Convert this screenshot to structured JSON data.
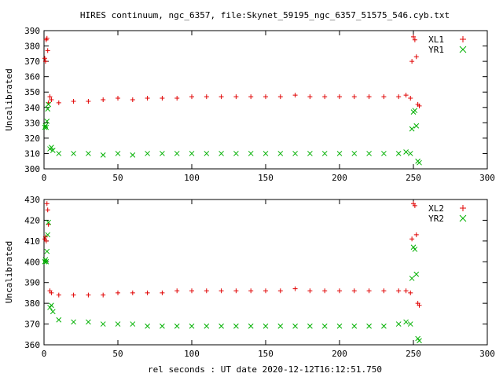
{
  "figure": {
    "title": "HIRES continuum, ngc_6357, file:Skynet_59195_ngc_6357_51575_546.cyb.txt",
    "xlabel": "rel seconds : UT date 2020-12-12T16:12:51.750"
  },
  "colors": {
    "red": "#e00000",
    "green": "#00b000",
    "axis": "#000000"
  },
  "chart_data": [
    {
      "type": "scatter",
      "id": "top",
      "title": "HIRES continuum, ngc_6357, file:Skynet_59195_ngc_6357_51575_546.cyb.txt",
      "xlabel": "",
      "ylabel": "Uncalibrated",
      "xlim": [
        0,
        300
      ],
      "ylim": [
        300,
        390
      ],
      "xticks": [
        0,
        50,
        100,
        150,
        200,
        250,
        300
      ],
      "yticks": [
        300,
        310,
        320,
        330,
        340,
        350,
        360,
        370,
        380,
        390
      ],
      "grid": false,
      "legend_position": "top-right",
      "series": [
        {
          "name": "XL1",
          "marker": "plus",
          "color": "#e00000",
          "x": [
            0.5,
            1,
            1.5,
            2,
            2.5,
            3,
            4,
            5,
            10,
            20,
            30,
            40,
            50,
            60,
            70,
            80,
            90,
            100,
            110,
            120,
            130,
            140,
            150,
            160,
            170,
            180,
            190,
            200,
            210,
            220,
            230,
            240,
            245,
            248,
            249,
            250,
            251,
            252,
            253,
            254
          ],
          "y": [
            372,
            370,
            384,
            385,
            377,
            343,
            347,
            345,
            343,
            344,
            344,
            345,
            346,
            345,
            346,
            346,
            346,
            347,
            347,
            347,
            347,
            347,
            347,
            347,
            348,
            347,
            347,
            347,
            347,
            347,
            347,
            347,
            348,
            346,
            370,
            386,
            384,
            373,
            342,
            341
          ]
        },
        {
          "name": "YR1",
          "marker": "cross",
          "color": "#00b000",
          "x": [
            0.5,
            1,
            1.5,
            2,
            2.5,
            3,
            4,
            5,
            6,
            10,
            20,
            30,
            40,
            50,
            60,
            70,
            80,
            90,
            100,
            110,
            120,
            130,
            140,
            150,
            160,
            170,
            180,
            190,
            200,
            210,
            220,
            230,
            240,
            245,
            248,
            249,
            250,
            251,
            252,
            253,
            254
          ],
          "y": [
            327,
            328,
            327,
            331,
            339,
            342,
            313,
            314,
            312,
            310,
            310,
            310,
            309,
            310,
            309,
            310,
            310,
            310,
            310,
            310,
            310,
            310,
            310,
            310,
            310,
            310,
            310,
            310,
            310,
            310,
            310,
            310,
            310,
            311,
            310,
            326,
            337,
            338,
            328,
            305,
            304
          ]
        }
      ]
    },
    {
      "type": "scatter",
      "id": "bottom",
      "title": "",
      "xlabel": "rel seconds : UT date 2020-12-12T16:12:51.750",
      "ylabel": "Uncalibrated",
      "xlim": [
        0,
        300
      ],
      "ylim": [
        360,
        430
      ],
      "xticks": [
        0,
        50,
        100,
        150,
        200,
        250,
        300
      ],
      "yticks": [
        360,
        370,
        380,
        390,
        400,
        410,
        420,
        430
      ],
      "grid": false,
      "legend_position": "top-right",
      "series": [
        {
          "name": "XL2",
          "marker": "plus",
          "color": "#e00000",
          "x": [
            0.5,
            1,
            1.5,
            2,
            2.5,
            3,
            4,
            5,
            10,
            20,
            30,
            40,
            50,
            60,
            70,
            80,
            90,
            100,
            110,
            120,
            130,
            140,
            150,
            160,
            170,
            180,
            190,
            200,
            210,
            220,
            230,
            240,
            245,
            248,
            249,
            250,
            251,
            252,
            253,
            254
          ],
          "y": [
            411,
            412,
            410,
            428,
            425,
            418,
            386,
            385,
            384,
            384,
            384,
            384,
            385,
            385,
            385,
            385,
            386,
            386,
            386,
            386,
            386,
            386,
            386,
            386,
            387,
            386,
            386,
            386,
            386,
            386,
            386,
            386,
            386,
            385,
            411,
            428,
            427,
            413,
            380,
            379
          ]
        },
        {
          "name": "YR2",
          "marker": "cross",
          "color": "#00b000",
          "x": [
            0.5,
            1,
            1.5,
            2,
            2.5,
            3,
            4,
            5,
            6,
            10,
            20,
            30,
            40,
            50,
            60,
            70,
            80,
            90,
            100,
            110,
            120,
            130,
            140,
            150,
            160,
            170,
            180,
            190,
            200,
            210,
            220,
            230,
            240,
            245,
            248,
            249,
            250,
            251,
            252,
            253,
            254
          ],
          "y": [
            400,
            401,
            400,
            405,
            413,
            419,
            378,
            379,
            376,
            372,
            371,
            371,
            370,
            370,
            370,
            369,
            369,
            369,
            369,
            369,
            369,
            369,
            369,
            369,
            369,
            369,
            369,
            369,
            369,
            369,
            369,
            369,
            370,
            371,
            370,
            392,
            407,
            406,
            394,
            363,
            362
          ]
        }
      ]
    }
  ]
}
